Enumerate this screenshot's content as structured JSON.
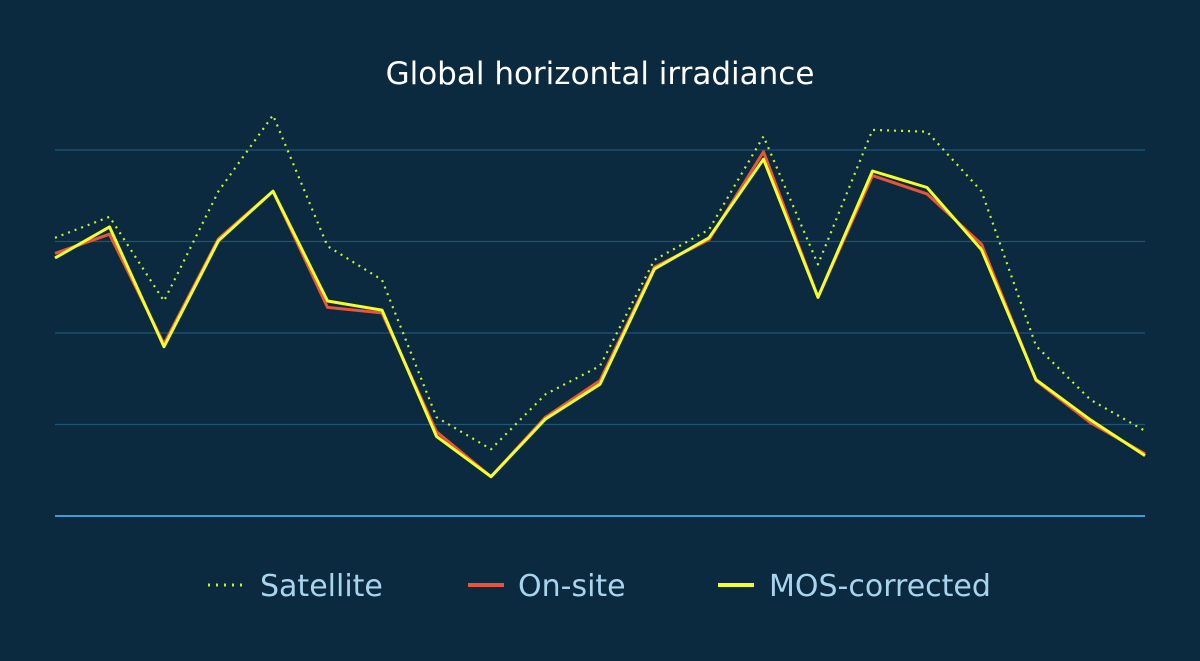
{
  "chart_data": {
    "type": "line",
    "title": "Global horizontal irradiance",
    "xlabel": "",
    "ylabel": "",
    "ylim": [
      0,
      4
    ],
    "grid": true,
    "legend_position": "bottom",
    "x": [
      1,
      2,
      3,
      4,
      5,
      6,
      7,
      8,
      9,
      10,
      11,
      12,
      13,
      14,
      15,
      16,
      17,
      18,
      19,
      20,
      21
    ],
    "series": [
      {
        "name": "Satellite",
        "style": "dotted",
        "color": "#c6f135",
        "values": [
          3.04,
          3.27,
          2.35,
          3.55,
          4.38,
          2.95,
          2.58,
          1.08,
          0.73,
          1.33,
          1.64,
          2.8,
          3.13,
          4.15,
          2.75,
          4.22,
          4.2,
          3.55,
          1.86,
          1.27,
          0.93
        ]
      },
      {
        "name": "On-site",
        "style": "solid",
        "color": "#e8553a",
        "values": [
          2.87,
          3.08,
          1.88,
          3.03,
          3.55,
          2.28,
          2.22,
          0.92,
          0.43,
          1.08,
          1.48,
          2.72,
          3.02,
          3.98,
          2.39,
          3.72,
          3.52,
          2.97,
          1.48,
          1.02,
          0.68
        ]
      },
      {
        "name": "MOS-corrected",
        "style": "solid",
        "color": "#f2ff2e",
        "values": [
          2.82,
          3.16,
          1.85,
          3.01,
          3.55,
          2.35,
          2.25,
          0.87,
          0.43,
          1.06,
          1.44,
          2.7,
          3.04,
          3.9,
          2.39,
          3.77,
          3.59,
          2.91,
          1.49,
          1.05,
          0.66
        ]
      }
    ]
  },
  "colors": {
    "background": "#0b2a3f",
    "gridline": "#1f5573",
    "baseline": "#3f9bd0",
    "title": "#ffffff",
    "legend_text": "#a9d4ee"
  }
}
